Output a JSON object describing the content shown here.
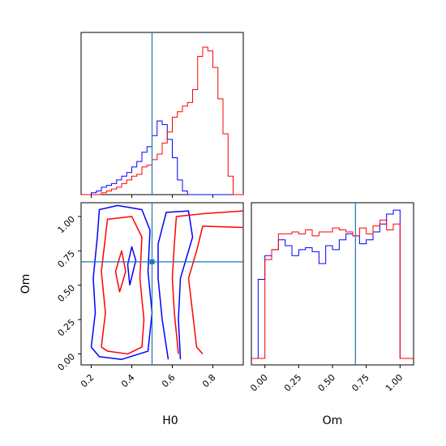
{
  "chart_data": [
    {
      "panel": "H0 histogram",
      "type": "histogram",
      "xlim": [
        0.15,
        0.95
      ],
      "x_ticks": [
        0.2,
        0.4,
        0.6,
        0.8
      ],
      "truth": 0.5,
      "truth_color": "#1f77b4",
      "bin_edges": [
        0.15,
        0.175,
        0.2,
        0.225,
        0.25,
        0.275,
        0.3,
        0.325,
        0.35,
        0.375,
        0.4,
        0.425,
        0.45,
        0.475,
        0.5,
        0.525,
        0.55,
        0.575,
        0.6,
        0.625,
        0.65,
        0.675,
        0.7,
        0.725,
        0.75,
        0.775,
        0.8,
        0.825,
        0.85,
        0.875,
        0.9,
        0.925,
        0.95
      ],
      "series": [
        {
          "color": "#0000ff",
          "values": [
            0,
            0,
            1,
            2,
            4,
            5,
            6,
            8,
            10,
            12,
            15,
            18,
            23,
            26,
            32,
            40,
            38,
            30,
            20,
            8,
            2,
            0,
            0,
            0,
            0,
            0,
            0,
            0,
            0,
            0,
            0,
            0
          ]
        },
        {
          "color": "#ff0000",
          "values": [
            0,
            0,
            0,
            0,
            1,
            2,
            3,
            4,
            6,
            8,
            10,
            11,
            15,
            16,
            19,
            22,
            28,
            34,
            42,
            45,
            48,
            50,
            57,
            75,
            80,
            78,
            69,
            52,
            33,
            10,
            0,
            0
          ]
        }
      ]
    },
    {
      "panel": "H0 vs Om contours",
      "type": "contour",
      "xlim": [
        0.15,
        0.95
      ],
      "ylim": [
        -0.08,
        1.1
      ],
      "x_ticks": [
        0.2,
        0.4,
        0.6,
        0.8
      ],
      "y_ticks": [
        "0.00",
        "0.25",
        "0.50",
        "0.75",
        "1.00"
      ],
      "xlabel": "H0",
      "ylabel": "Om",
      "truth": [
        0.5,
        0.67
      ],
      "series": [
        {
          "color": "#0000ff",
          "contours": [
            [
              [
                0.2,
                0.05
              ],
              [
                0.22,
                0.3
              ],
              [
                0.21,
                0.55
              ],
              [
                0.23,
                0.85
              ],
              [
                0.24,
                1.05
              ],
              [
                0.33,
                1.08
              ],
              [
                0.45,
                1.05
              ],
              [
                0.49,
                0.9
              ],
              [
                0.48,
                0.6
              ],
              [
                0.5,
                0.3
              ],
              [
                0.48,
                0.02
              ],
              [
                0.35,
                -0.04
              ],
              [
                0.24,
                -0.02
              ],
              [
                0.2,
                0.05
              ]
            ],
            [
              [
                0.58,
                -0.04
              ],
              [
                0.55,
                0.25
              ],
              [
                0.53,
                0.55
              ],
              [
                0.53,
                0.8
              ],
              [
                0.57,
                1.03
              ],
              [
                0.68,
                1.04
              ],
              [
                0.7,
                0.85
              ],
              [
                0.64,
                0.55
              ],
              [
                0.63,
                0.25
              ],
              [
                0.64,
                -0.04
              ]
            ],
            [
              [
                0.39,
                0.5
              ],
              [
                0.42,
                0.68
              ],
              [
                0.4,
                0.78
              ],
              [
                0.38,
                0.65
              ],
              [
                0.39,
                0.5
              ]
            ]
          ]
        },
        {
          "color": "#ff0000",
          "contours": [
            [
              [
                0.25,
                0.05
              ],
              [
                0.27,
                0.3
              ],
              [
                0.25,
                0.6
              ],
              [
                0.27,
                0.85
              ],
              [
                0.28,
                0.98
              ],
              [
                0.4,
                1.0
              ],
              [
                0.45,
                0.85
              ],
              [
                0.44,
                0.55
              ],
              [
                0.46,
                0.25
              ],
              [
                0.45,
                0.05
              ],
              [
                0.38,
                0.0
              ],
              [
                0.28,
                0.02
              ],
              [
                0.25,
                0.05
              ]
            ],
            [
              [
                0.63,
                0.0
              ],
              [
                0.61,
                0.3
              ],
              [
                0.6,
                0.55
              ],
              [
                0.61,
                0.8
              ],
              [
                0.62,
                1.0
              ],
              [
                0.75,
                1.02
              ],
              [
                0.95,
                1.04
              ]
            ],
            [
              [
                0.95,
                0.92
              ],
              [
                0.75,
                0.93
              ],
              [
                0.72,
                0.75
              ],
              [
                0.68,
                0.55
              ],
              [
                0.7,
                0.3
              ],
              [
                0.72,
                0.05
              ],
              [
                0.75,
                0.0
              ]
            ],
            [
              [
                0.34,
                0.45
              ],
              [
                0.37,
                0.6
              ],
              [
                0.35,
                0.75
              ],
              [
                0.32,
                0.6
              ],
              [
                0.34,
                0.45
              ]
            ]
          ]
        }
      ]
    },
    {
      "panel": "Om histogram",
      "type": "histogram",
      "xlim": [
        -0.1,
        1.1
      ],
      "x_ticks": [
        "0.00",
        "0.25",
        "0.50",
        "0.75",
        "1.00"
      ],
      "xlabel": "Om",
      "truth": 0.67,
      "truth_color": "#1f77b4",
      "bin_edges": [
        -0.1,
        -0.05,
        0.0,
        0.05,
        0.1,
        0.15,
        0.2,
        0.25,
        0.3,
        0.35,
        0.4,
        0.45,
        0.5,
        0.55,
        0.6,
        0.65,
        0.7,
        0.75,
        0.8,
        0.85,
        0.9,
        0.95,
        1.0,
        1.05,
        1.1
      ],
      "series": [
        {
          "color": "#0000ff",
          "values": [
            0,
            40,
            52,
            55,
            60,
            57,
            52,
            55,
            56,
            54,
            48,
            57,
            55,
            60,
            63,
            62,
            58,
            60,
            64,
            68,
            73,
            75,
            0,
            0
          ]
        },
        {
          "color": "#ff0000",
          "values": [
            0,
            0,
            50,
            55,
            63,
            63,
            64,
            63,
            65,
            62,
            64,
            64,
            66,
            65,
            64,
            62,
            66,
            63,
            67,
            70,
            65,
            68,
            0,
            0
          ]
        }
      ]
    }
  ]
}
